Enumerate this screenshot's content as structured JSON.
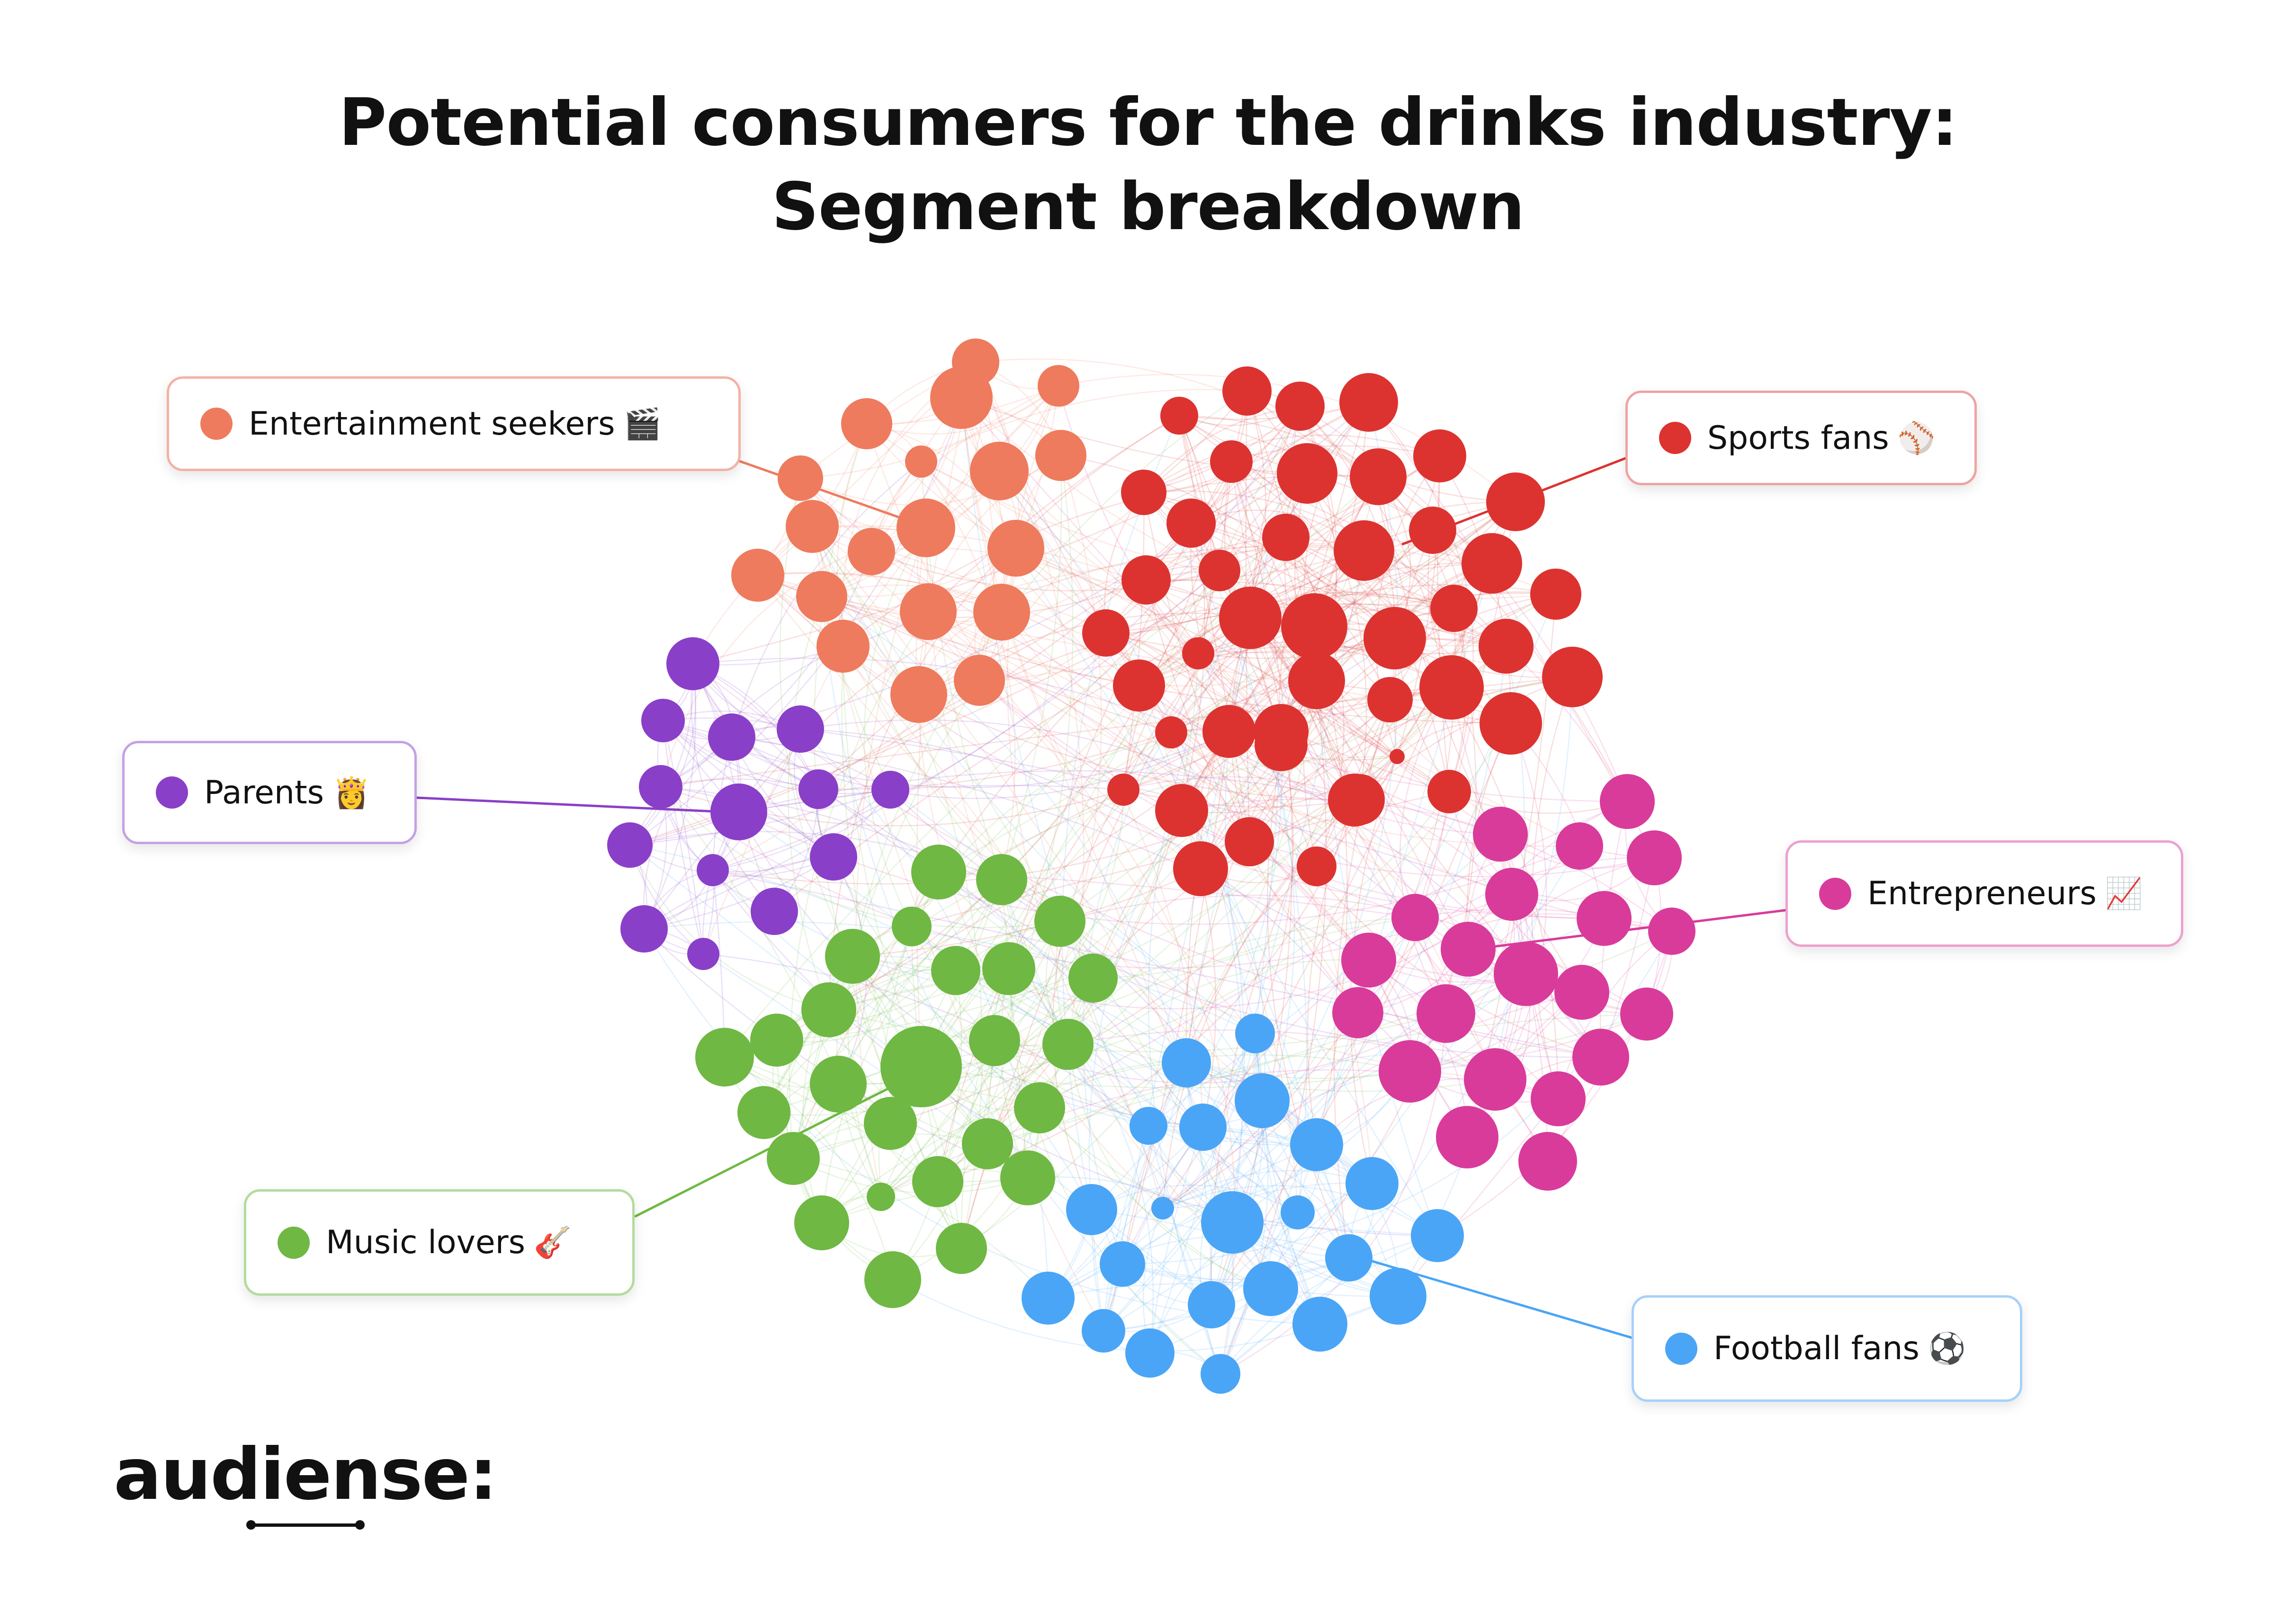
{
  "title": {
    "line1": "Potential consumers for the drinks industry:",
    "line2": "Segment breakdown"
  },
  "segments": [
    {
      "id": "entertainment",
      "label": "Entertainment seekers",
      "emoji": "🎬",
      "color": "#EE7B5D"
    },
    {
      "id": "sports",
      "label": "Sports fans",
      "emoji": "⚾",
      "color": "#DC3330"
    },
    {
      "id": "parents",
      "label": "Parents",
      "emoji": "👸",
      "color": "#8A3FC8"
    },
    {
      "id": "entrepreneurs",
      "label": "Entrepreneurs",
      "emoji": "📈",
      "color": "#D93B9B"
    },
    {
      "id": "music",
      "label": "Music lovers",
      "emoji": "🎸",
      "color": "#6FB843"
    },
    {
      "id": "football",
      "label": "Football fans",
      "emoji": "⚽",
      "color": "#4AA5F6"
    }
  ],
  "brand": {
    "logo": "audiense:"
  }
}
